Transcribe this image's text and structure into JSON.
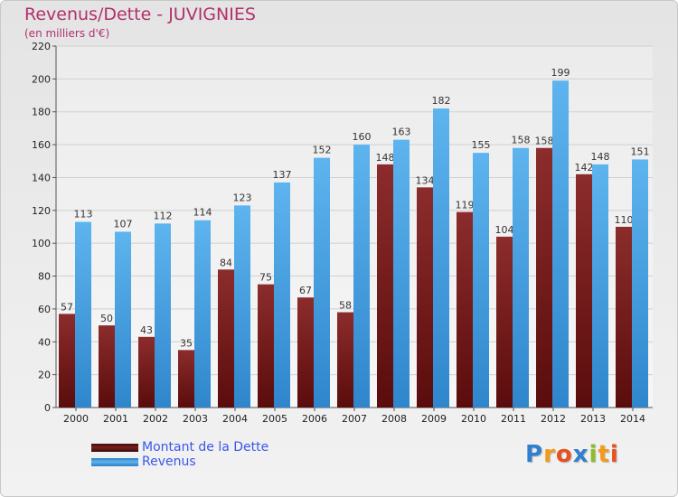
{
  "header": {
    "title": "Revenus/Dette - JUVIGNIES",
    "subtitle": "(en milliers d'€)"
  },
  "chart_data": {
    "type": "bar",
    "categories": [
      "2000",
      "2001",
      "2002",
      "2003",
      "2004",
      "2005",
      "2006",
      "2007",
      "2008",
      "2009",
      "2010",
      "2011",
      "2012",
      "2013",
      "2014"
    ],
    "series": [
      {
        "name": "Montant de la Dette",
        "color": "#7a1f1f",
        "values": [
          57,
          50,
          43,
          35,
          84,
          75,
          67,
          58,
          148,
          134,
          119,
          104,
          158,
          142,
          110
        ]
      },
      {
        "name": "Revenus",
        "color": "#4aa3e6",
        "values": [
          113,
          107,
          112,
          114,
          123,
          137,
          152,
          160,
          163,
          182,
          155,
          158,
          199,
          148,
          151
        ]
      }
    ],
    "ylim": [
      0,
      220
    ],
    "yticks": [
      0,
      20,
      40,
      60,
      80,
      100,
      120,
      140,
      160,
      180,
      200,
      220
    ],
    "grid": true,
    "legend_position": "bottom-left"
  },
  "logo": {
    "letters": [
      "P",
      "r",
      "o",
      "x",
      "i",
      "t",
      "i"
    ],
    "colors": [
      "#2f7fd0",
      "#f29a1a",
      "#e8501f",
      "#2f7fd0",
      "#8cbf26",
      "#f29a1a",
      "#e8501f"
    ]
  }
}
